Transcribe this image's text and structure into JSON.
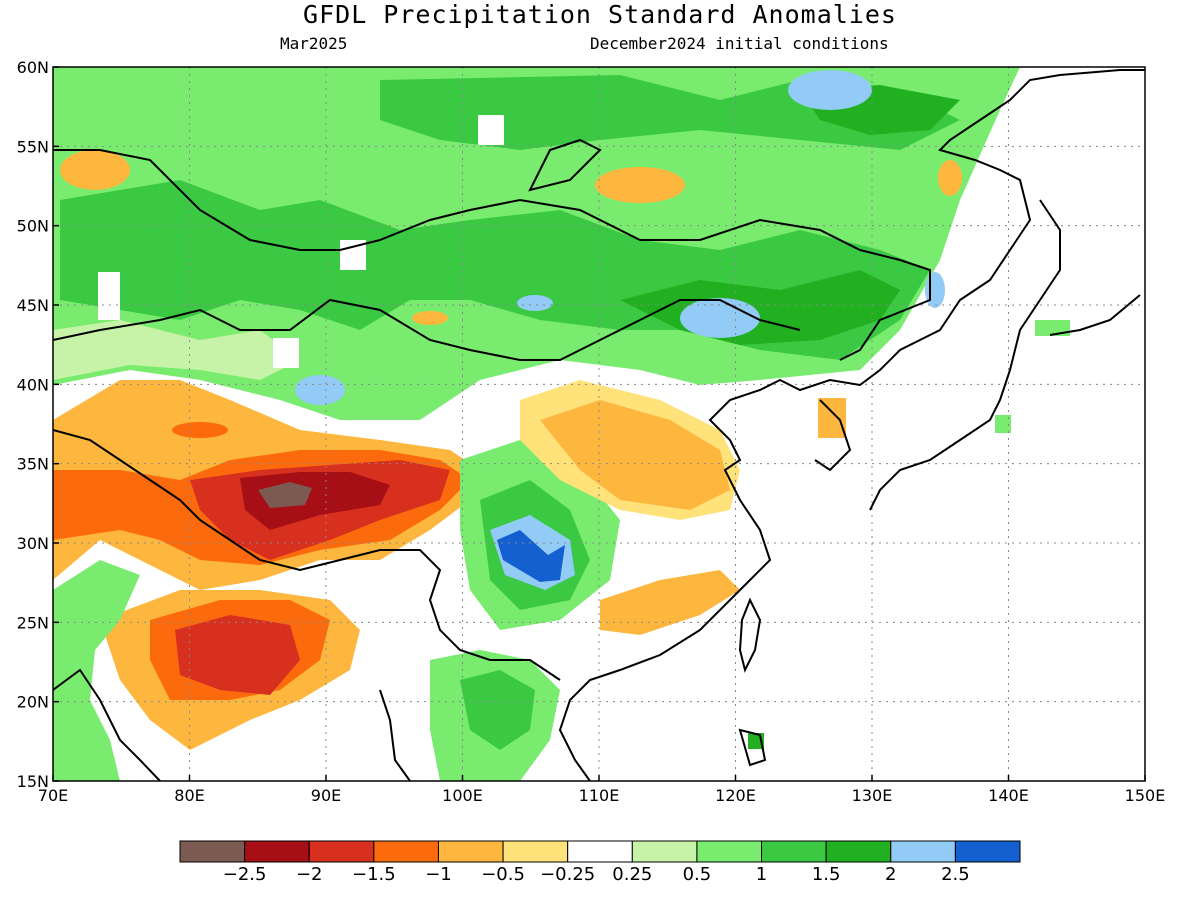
{
  "title": "GFDL Precipitation Standard Anomalies",
  "subtitle_left": "Mar2025",
  "subtitle_right": "December2024 initial conditions",
  "axes": {
    "lon_ticks": [
      "70E",
      "80E",
      "90E",
      "100E",
      "110E",
      "120E",
      "130E",
      "140E",
      "150E"
    ],
    "lat_ticks": [
      "60N",
      "55N",
      "50N",
      "45N",
      "40N",
      "35N",
      "30N",
      "25N",
      "20N",
      "15N"
    ],
    "lon_range": [
      70,
      150
    ],
    "lat_range": [
      15,
      60
    ],
    "grid": "dotted"
  },
  "colorbar": {
    "colors": [
      "#7b5a52",
      "#a50f15",
      "#d7301f",
      "#fc6a0e",
      "#fdb73e",
      "#ffe27a",
      "#ffffff",
      "#c7f3a8",
      "#79ec6f",
      "#3bc943",
      "#20b020",
      "#92cbf5",
      "#1460d0"
    ],
    "labels": [
      "−2.5",
      "−2",
      "−1.5",
      "−1",
      "−0.5",
      "−0.25",
      "0.25",
      "0.5",
      "1",
      "1.5",
      "2",
      "2.5"
    ]
  },
  "regions": [
    {
      "name": "siberia-wet",
      "category": "1",
      "color": "#79ec6f",
      "lon": [
        70,
        136
      ],
      "lat": [
        50,
        60
      ]
    },
    {
      "name": "mongolia-wet",
      "category": "1.5",
      "color": "#3bc943",
      "lon": [
        92,
        130
      ],
      "lat": [
        42,
        50
      ]
    },
    {
      "name": "northeast-china-wet",
      "category": "2",
      "color": "#92cbf5",
      "lon": [
        123,
        128
      ],
      "lat": [
        43,
        46
      ]
    },
    {
      "name": "baikal-wet",
      "category": "2",
      "color": "#92cbf5",
      "lon": [
        133,
        136
      ],
      "lat": [
        56,
        59
      ]
    },
    {
      "name": "tibet-dry",
      "category": "-2",
      "color": "#a50f15",
      "lon": [
        82,
        97
      ],
      "lat": [
        30,
        35
      ]
    },
    {
      "name": "tibet-core-dry",
      "category": "-2.5",
      "color": "#7b5a52",
      "lon": [
        86,
        89
      ],
      "lat": [
        32,
        34
      ]
    },
    {
      "name": "central-india-dry",
      "category": "-1.5",
      "color": "#d7301f",
      "lon": [
        78,
        88
      ],
      "lat": [
        20,
        25
      ]
    },
    {
      "name": "north-china-dry",
      "category": "-0.5",
      "color": "#fdb73e",
      "lon": [
        106,
        119
      ],
      "lat": [
        33,
        39
      ]
    },
    {
      "name": "south-china-dry",
      "category": "-0.5",
      "color": "#fdb73e",
      "lon": [
        111,
        120
      ],
      "lat": [
        24,
        27
      ]
    },
    {
      "name": "sichuan-wet",
      "category": "2.5",
      "color": "#1460d0",
      "lon": [
        102,
        106
      ],
      "lat": [
        28,
        30
      ]
    },
    {
      "name": "indochina-wet",
      "category": "1",
      "color": "#79ec6f",
      "lon": [
        97,
        106
      ],
      "lat": [
        16,
        23
      ]
    }
  ]
}
